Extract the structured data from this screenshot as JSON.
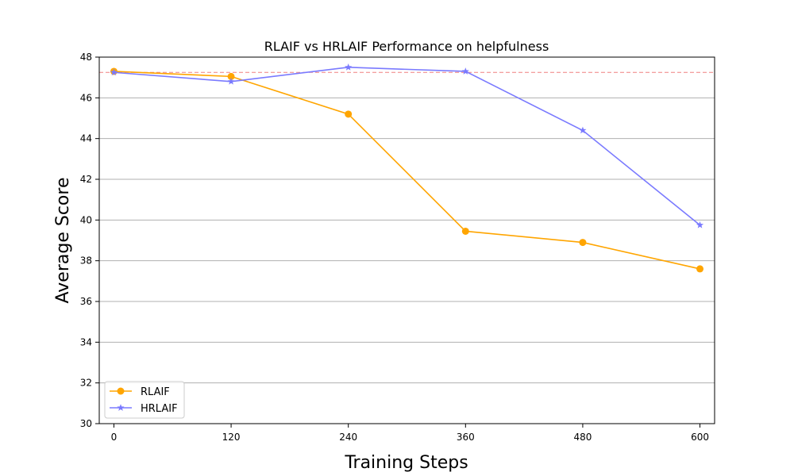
{
  "chart_data": {
    "type": "line",
    "title": "RLAIF vs HRLAIF Performance on helpfulness",
    "xlabel": "Training Steps",
    "ylabel": "Average Score",
    "x": [
      0,
      120,
      240,
      360,
      480,
      600
    ],
    "xticks": [
      "0",
      "120",
      "240",
      "360",
      "480",
      "600"
    ],
    "ylim": [
      30,
      48
    ],
    "yticks": [
      "30",
      "32",
      "34",
      "36",
      "38",
      "40",
      "42",
      "44",
      "46",
      "48"
    ],
    "grid": "horizontal",
    "legend_position": "bottom-left",
    "reference_line": {
      "y": 47.25,
      "color": "#f08080",
      "style": "dashed"
    },
    "series": [
      {
        "name": "RLAIF",
        "values": [
          47.3,
          47.05,
          45.2,
          39.45,
          38.9,
          37.6
        ],
        "color": "#ffa500",
        "marker": "circle"
      },
      {
        "name": "HRLAIF",
        "values": [
          47.25,
          46.8,
          47.5,
          47.3,
          44.4,
          39.75
        ],
        "color": "#7a7aff",
        "marker": "star"
      }
    ]
  }
}
